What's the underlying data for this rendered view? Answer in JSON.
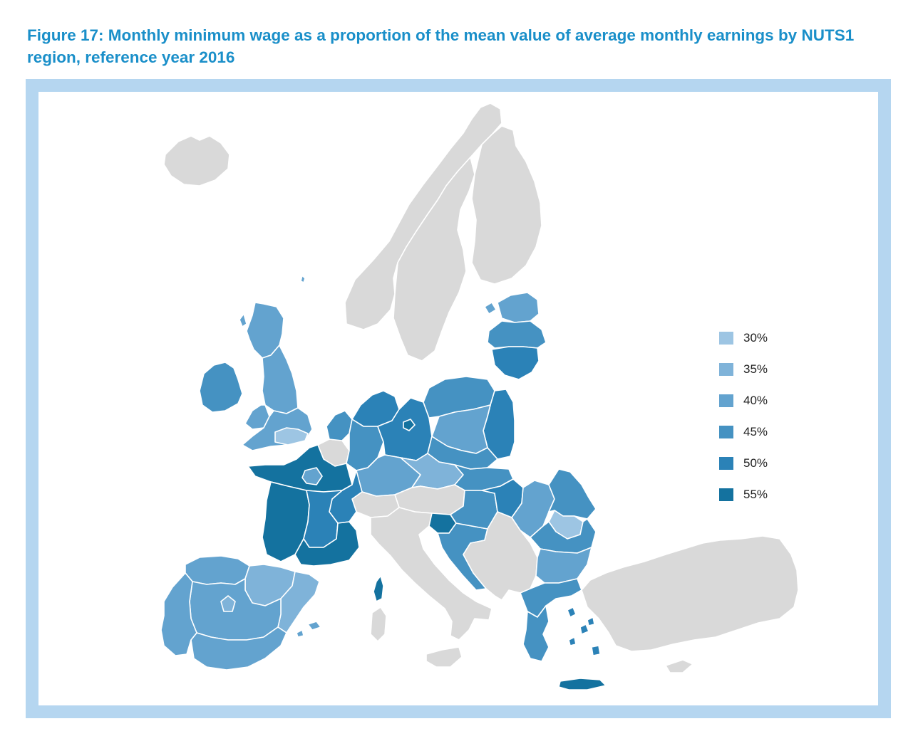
{
  "figure": {
    "title": "Figure 17: Monthly minimum wage as a proportion of the mean value of average monthly earnings by NUTS1 region, reference year 2016"
  },
  "colors": {
    "frame": "#b5d6f0",
    "no_data": "#d9d9d9",
    "border": "#ffffff",
    "c30": "#9dc5e3",
    "c35": "#7fb3d9",
    "c40": "#63a3cf",
    "c45": "#4592c2",
    "c50": "#2b82b7",
    "c55": "#14729f"
  },
  "legend": {
    "items": [
      {
        "label": "30%",
        "color": "#9dc5e3"
      },
      {
        "label": "35%",
        "color": "#7fb3d9"
      },
      {
        "label": "40%",
        "color": "#63a3cf"
      },
      {
        "label": "45%",
        "color": "#4592c2"
      },
      {
        "label": "50%",
        "color": "#2b82b7"
      },
      {
        "label": "55%",
        "color": "#14729f"
      }
    ]
  },
  "regions": [
    {
      "name": "iceland",
      "class": "no-data"
    },
    {
      "name": "norway",
      "class": "no-data"
    },
    {
      "name": "sweden",
      "class": "no-data"
    },
    {
      "name": "finland",
      "class": "no-data"
    },
    {
      "name": "estonia",
      "class": "c40"
    },
    {
      "name": "latvia",
      "class": "c45"
    },
    {
      "name": "lithuania",
      "class": "c50"
    },
    {
      "name": "scotland",
      "class": "c40"
    },
    {
      "name": "ireland",
      "class": "c45"
    },
    {
      "name": "england-north",
      "class": "c40"
    },
    {
      "name": "england-south",
      "class": "c40"
    },
    {
      "name": "london",
      "class": "c30"
    },
    {
      "name": "wales",
      "class": "c40"
    },
    {
      "name": "benelux",
      "class": "no-data"
    },
    {
      "name": "netherlands",
      "class": "c45"
    },
    {
      "name": "germany-north",
      "class": "c50"
    },
    {
      "name": "germany-west",
      "class": "c45"
    },
    {
      "name": "germany-south",
      "class": "c40"
    },
    {
      "name": "germany-east",
      "class": "c50"
    },
    {
      "name": "berlin",
      "class": "c55"
    },
    {
      "name": "poland-north",
      "class": "c45"
    },
    {
      "name": "poland-central",
      "class": "c40"
    },
    {
      "name": "poland-east",
      "class": "c50"
    },
    {
      "name": "poland-south",
      "class": "c45"
    },
    {
      "name": "czechia",
      "class": "c35"
    },
    {
      "name": "slovakia",
      "class": "c45"
    },
    {
      "name": "austria",
      "class": "no-data"
    },
    {
      "name": "switzerland",
      "class": "no-data"
    },
    {
      "name": "france-north",
      "class": "c55"
    },
    {
      "name": "paris",
      "class": "c40"
    },
    {
      "name": "france-east",
      "class": "c50"
    },
    {
      "name": "france-southwest",
      "class": "c55"
    },
    {
      "name": "france-southeast",
      "class": "c50"
    },
    {
      "name": "france-south",
      "class": "c55"
    },
    {
      "name": "corsica",
      "class": "c55"
    },
    {
      "name": "hungary",
      "class": "c45"
    },
    {
      "name": "hungary-east",
      "class": "c50"
    },
    {
      "name": "slovenia",
      "class": "c55"
    },
    {
      "name": "croatia",
      "class": "c45"
    },
    {
      "name": "romania-west",
      "class": "c40"
    },
    {
      "name": "romania-north-east",
      "class": "c45"
    },
    {
      "name": "romania-south",
      "class": "c45"
    },
    {
      "name": "bucharest",
      "class": "c30"
    },
    {
      "name": "bulgaria",
      "class": "c40"
    },
    {
      "name": "greece-north",
      "class": "c45"
    },
    {
      "name": "greece-south",
      "class": "c45"
    },
    {
      "name": "crete",
      "class": "c55"
    },
    {
      "name": "aegean-islands",
      "class": "c50"
    },
    {
      "name": "spain-northwest",
      "class": "c40"
    },
    {
      "name": "spain-northeast",
      "class": "c35"
    },
    {
      "name": "catalonia",
      "class": "c35"
    },
    {
      "name": "spain-centre",
      "class": "c40"
    },
    {
      "name": "madrid",
      "class": "c35"
    },
    {
      "name": "spain-south",
      "class": "c40"
    },
    {
      "name": "balearic-islands",
      "class": "c40"
    },
    {
      "name": "portugal",
      "class": "c40"
    },
    {
      "name": "italy",
      "class": "no-data"
    },
    {
      "name": "sardinia",
      "class": "no-data"
    },
    {
      "name": "sicily",
      "class": "no-data"
    },
    {
      "name": "balkans",
      "class": "no-data"
    },
    {
      "name": "turkey",
      "class": "no-data"
    },
    {
      "name": "cyprus",
      "class": "no-data"
    }
  ]
}
